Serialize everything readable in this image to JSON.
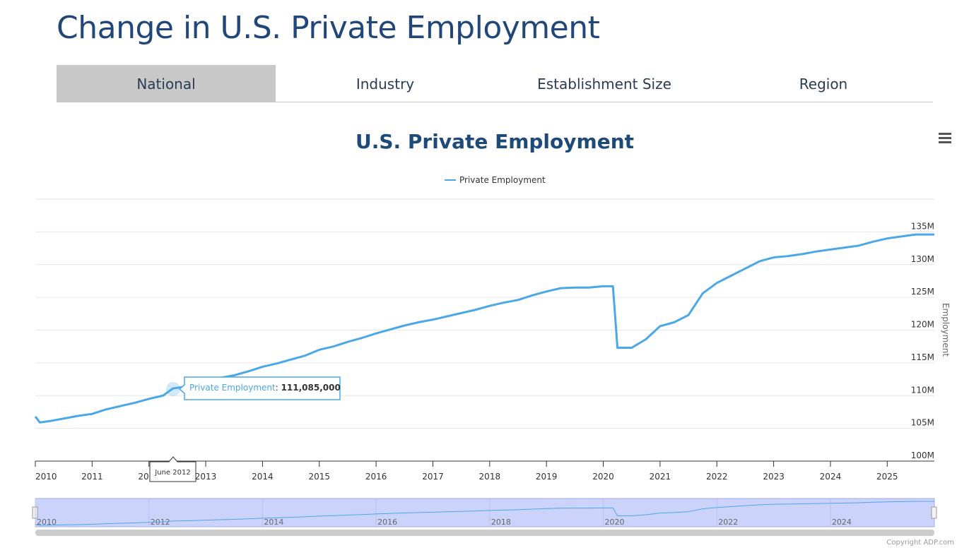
{
  "header": {
    "title": "Change in U.S. Private Employment"
  },
  "tabs": {
    "items": [
      "National",
      "Industry",
      "Establishment Size",
      "Region"
    ],
    "active": 0
  },
  "chart_data": {
    "type": "line",
    "title": "U.S. Private Employment",
    "y_axis_label": "Employment",
    "x": [
      2010,
      2010.08,
      2010.25,
      2010.5,
      2010.75,
      2011,
      2011.25,
      2011.5,
      2011.75,
      2012,
      2012.25,
      2012.42,
      2012.75,
      2013,
      2013.25,
      2013.5,
      2013.75,
      2014,
      2014.25,
      2014.5,
      2014.75,
      2015,
      2015.25,
      2015.5,
      2015.75,
      2016,
      2016.25,
      2016.5,
      2016.75,
      2017,
      2017.25,
      2017.5,
      2017.75,
      2018,
      2018.25,
      2018.5,
      2018.75,
      2019,
      2019.25,
      2019.5,
      2019.75,
      2020,
      2020.17,
      2020.25,
      2020.5,
      2020.75,
      2021,
      2021.25,
      2021.5,
      2021.75,
      2022,
      2022.25,
      2022.5,
      2022.75,
      2023,
      2023.25,
      2023.5,
      2023.75,
      2024,
      2024.25,
      2024.5,
      2024.75,
      2025,
      2025.25,
      2025.5,
      2025.83
    ],
    "series": [
      {
        "name": "Private Employment",
        "color": "#4aa8e8",
        "values": [
          106.8,
          105.9,
          106.1,
          106.5,
          106.9,
          107.2,
          107.9,
          108.4,
          108.9,
          109.5,
          110.0,
          111.085,
          111.5,
          112.1,
          112.7,
          113.1,
          113.7,
          114.4,
          114.9,
          115.5,
          116.1,
          117.0,
          117.5,
          118.2,
          118.8,
          119.5,
          120.1,
          120.7,
          121.2,
          121.6,
          122.1,
          122.6,
          123.1,
          123.7,
          124.2,
          124.6,
          125.3,
          125.9,
          126.4,
          126.5,
          126.5,
          126.7,
          126.7,
          117.3,
          117.3,
          118.6,
          120.6,
          121.2,
          122.3,
          125.6,
          127.2,
          128.3,
          129.4,
          130.5,
          131.1,
          131.3,
          131.6,
          132.0,
          132.3,
          132.6,
          132.9,
          133.5,
          134.0,
          134.3,
          134.6,
          134.6
        ]
      }
    ],
    "xlim": [
      2010,
      2025.83
    ],
    "xticks": [
      2010,
      2011,
      2012,
      2013,
      2014,
      2015,
      2016,
      2017,
      2018,
      2019,
      2020,
      2021,
      2022,
      2023,
      2024,
      2025
    ],
    "ylim": [
      100,
      140
    ],
    "yticks": [
      {
        "value": 100,
        "label": "100M"
      },
      {
        "value": 105,
        "label": "105M"
      },
      {
        "value": 110,
        "label": "110M"
      },
      {
        "value": 115,
        "label": "115M"
      },
      {
        "value": 120,
        "label": "120M"
      },
      {
        "value": 125,
        "label": "125M"
      },
      {
        "value": 130,
        "label": "130M"
      },
      {
        "value": 135,
        "label": "135M"
      }
    ],
    "grid": true,
    "legend": "top",
    "navigator_xticks": [
      2010,
      2012,
      2014,
      2016,
      2018,
      2020,
      2022,
      2024
    ],
    "tooltip": {
      "x_label": "June 2012",
      "value_label": "111,085,000"
    }
  },
  "footer": {
    "copyright": "Copyright ADP.com"
  }
}
